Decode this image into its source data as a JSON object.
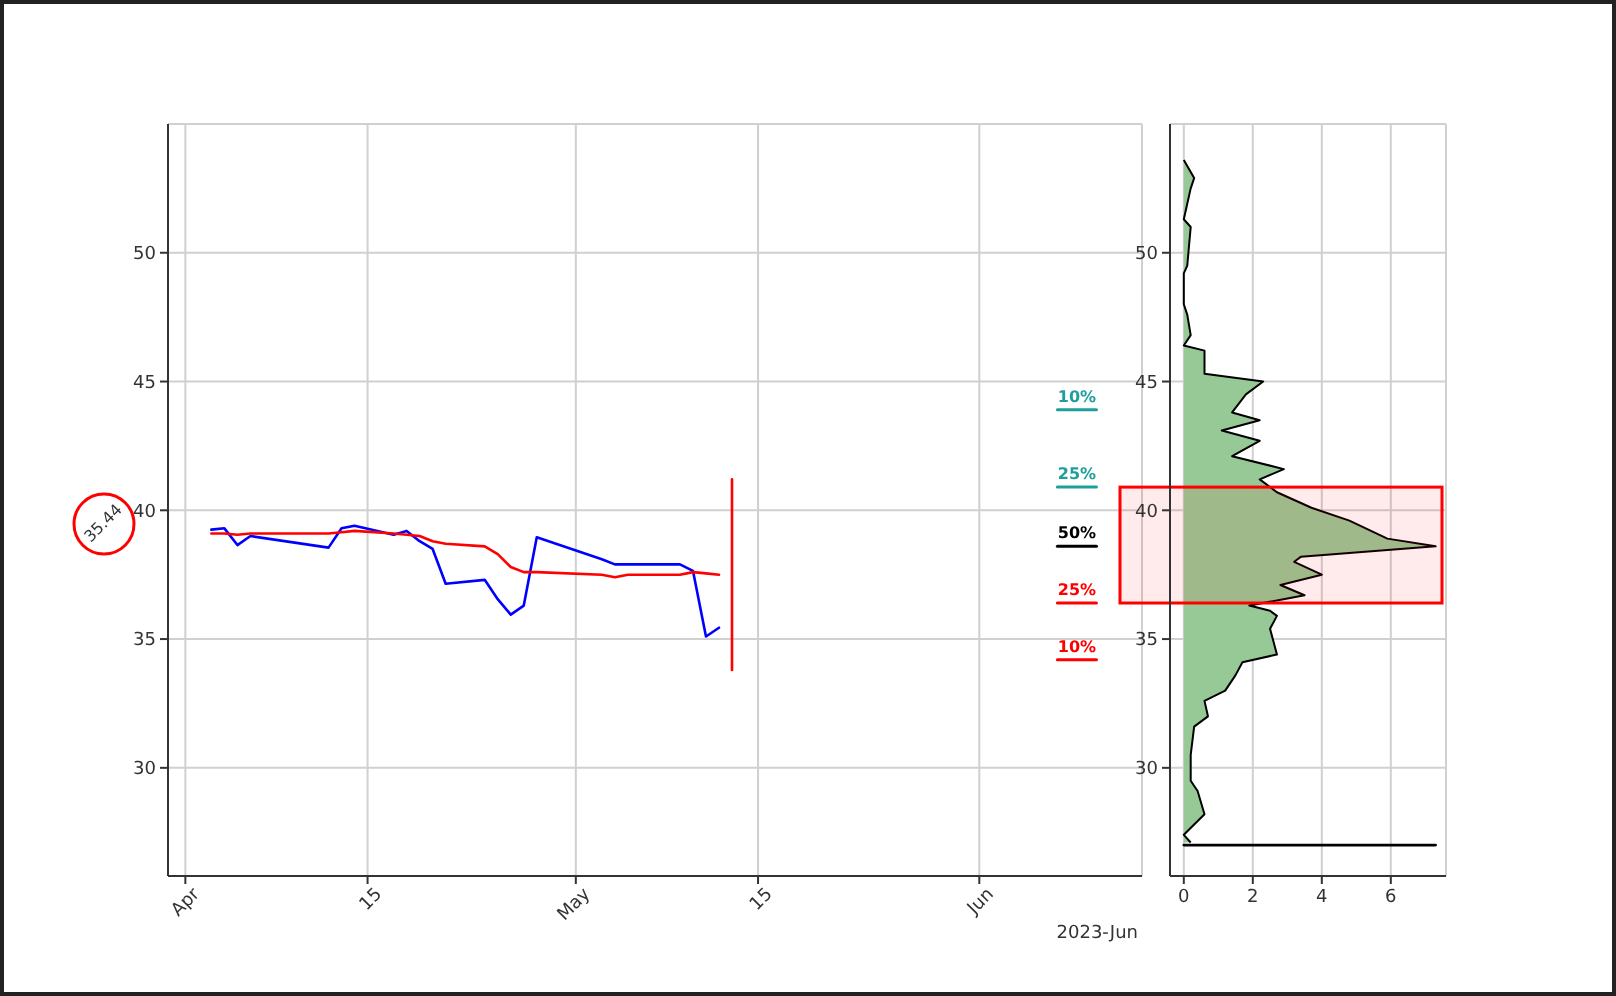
{
  "chart_data": [
    {
      "type": "line",
      "xlabel": "2023-Jun",
      "ylabel": "35.44",
      "xlim": [
        "2023-03-30T16:00",
        "2023-06-13T12:00"
      ],
      "xticks": [
        {
          "value": "2023-04-01",
          "label": "Apr"
        },
        {
          "value": "2023-04-15",
          "label": "15"
        },
        {
          "value": "2023-05-01",
          "label": "May"
        },
        {
          "value": "2023-05-15",
          "label": "15"
        },
        {
          "value": "2023-06-01",
          "label": "Jun"
        }
      ],
      "ylim": [
        25.8,
        55.0
      ],
      "yticks": [
        30,
        35,
        40,
        45,
        50
      ],
      "grid": true,
      "series": [
        {
          "color": "#0000ff",
          "x": [
            "2023-04-03",
            "2023-04-04",
            "2023-04-05",
            "2023-04-06",
            "2023-04-12",
            "2023-04-13",
            "2023-04-14",
            "2023-04-17",
            "2023-04-18",
            "2023-04-19",
            "2023-04-20",
            "2023-04-21",
            "2023-04-24",
            "2023-04-25",
            "2023-04-26",
            "2023-04-27",
            "2023-04-28",
            "2023-05-03",
            "2023-05-04",
            "2023-05-05",
            "2023-05-08",
            "2023-05-09",
            "2023-05-10",
            "2023-05-11",
            "2023-05-12"
          ],
          "values": [
            39.25,
            39.3,
            38.65,
            39.0,
            38.55,
            39.3,
            39.4,
            39.05,
            39.2,
            38.8,
            38.5,
            37.15,
            37.3,
            36.55,
            35.95,
            36.3,
            38.95,
            38.1,
            37.9,
            37.9,
            37.9,
            37.9,
            37.65,
            35.1,
            35.44
          ]
        },
        {
          "color": "#ff0000",
          "x": [
            "2023-04-03",
            "2023-04-04",
            "2023-04-05",
            "2023-04-06",
            "2023-04-12",
            "2023-04-13",
            "2023-04-14",
            "2023-04-17",
            "2023-04-18",
            "2023-04-19",
            "2023-04-20",
            "2023-04-21",
            "2023-04-24",
            "2023-04-25",
            "2023-04-26",
            "2023-04-27",
            "2023-04-28",
            "2023-05-03",
            "2023-05-04",
            "2023-05-05",
            "2023-05-08",
            "2023-05-09",
            "2023-05-10",
            "2023-05-11",
            "2023-05-12"
          ],
          "values": [
            39.1,
            39.1,
            39.05,
            39.1,
            39.1,
            39.15,
            39.2,
            39.1,
            39.05,
            39.0,
            38.8,
            38.7,
            38.6,
            38.3,
            37.8,
            37.6,
            37.6,
            37.5,
            37.4,
            37.5,
            37.5,
            37.5,
            37.6,
            37.55,
            37.5
          ]
        },
        {
          "type": "line",
          "color": "#ff0000",
          "x": [
            "2023-05-13",
            "2023-05-13"
          ],
          "values": [
            41.2,
            33.8
          ]
        },
        {
          "type": "line",
          "name": "10%",
          "color": "#1f9e9e",
          "x": [
            "2023-06-07",
            "2023-06-10"
          ],
          "values": [
            43.9,
            43.9
          ]
        },
        {
          "type": "line",
          "name": "25%",
          "color": "#1f9e9e",
          "x": [
            "2023-06-07",
            "2023-06-10"
          ],
          "values": [
            40.9,
            40.9
          ]
        },
        {
          "type": "line",
          "name": "50%",
          "color": "#000000",
          "x": [
            "2023-06-07",
            "2023-06-10"
          ],
          "values": [
            38.6,
            38.6
          ]
        },
        {
          "type": "line",
          "name": "25%",
          "color": "#ff0000",
          "x": [
            "2023-06-07",
            "2023-06-10"
          ],
          "values": [
            36.4,
            36.4
          ]
        },
        {
          "type": "line",
          "name": "10%",
          "color": "#ff0000",
          "x": [
            "2023-06-07",
            "2023-06-10"
          ],
          "values": [
            34.2,
            34.2
          ]
        }
      ]
    },
    {
      "type": "area",
      "orientation": "horizontal",
      "xlim": [
        -0.4,
        7.6
      ],
      "xticks": [
        0,
        2,
        4,
        6
      ],
      "ylim": [
        25.8,
        55.0
      ],
      "yticks": [
        30,
        35,
        40,
        45,
        50
      ],
      "grid": true,
      "series": [
        {
          "color": "#97c997",
          "x": [
            27.1,
            27.4,
            28.2,
            29.1,
            29.5,
            30.5,
            31.6,
            32.0,
            32.6,
            33.0,
            33.6,
            34.1,
            34.4,
            35.4,
            35.9,
            36.1,
            36.3,
            36.5,
            36.7,
            37.1,
            37.5,
            38.0,
            38.2,
            38.6,
            38.9,
            39.6,
            40.1,
            40.7,
            41.2,
            41.6,
            42.1,
            42.7,
            43.1,
            43.5,
            43.8,
            44.5,
            45.0,
            45.3,
            46.2,
            46.4,
            46.8,
            47.6,
            48.0,
            49.2,
            49.5,
            51.0,
            51.3,
            52.5,
            52.9,
            53.6
          ],
          "values": [
            0.2,
            0.0,
            0.6,
            0.4,
            0.2,
            0.2,
            0.3,
            0.7,
            0.6,
            1.2,
            1.5,
            1.7,
            2.7,
            2.5,
            2.7,
            2.5,
            1.9,
            2.7,
            3.5,
            2.8,
            4.0,
            3.2,
            3.4,
            7.3,
            5.9,
            4.8,
            3.7,
            2.7,
            2.2,
            2.9,
            1.4,
            2.2,
            1.1,
            2.2,
            1.4,
            1.8,
            2.3,
            0.6,
            0.6,
            0.0,
            0.2,
            0.1,
            0.0,
            0.0,
            0.1,
            0.2,
            0.0,
            0.2,
            0.3,
            0.0
          ]
        },
        {
          "type": "line",
          "color": "#000000",
          "x": [
            27.0,
            27.0
          ],
          "values": [
            0,
            7.3
          ]
        }
      ],
      "bands": [
        {
          "axis": "y",
          "from": 36.4,
          "to": 40.9,
          "color": "#ff0000"
        }
      ]
    }
  ]
}
